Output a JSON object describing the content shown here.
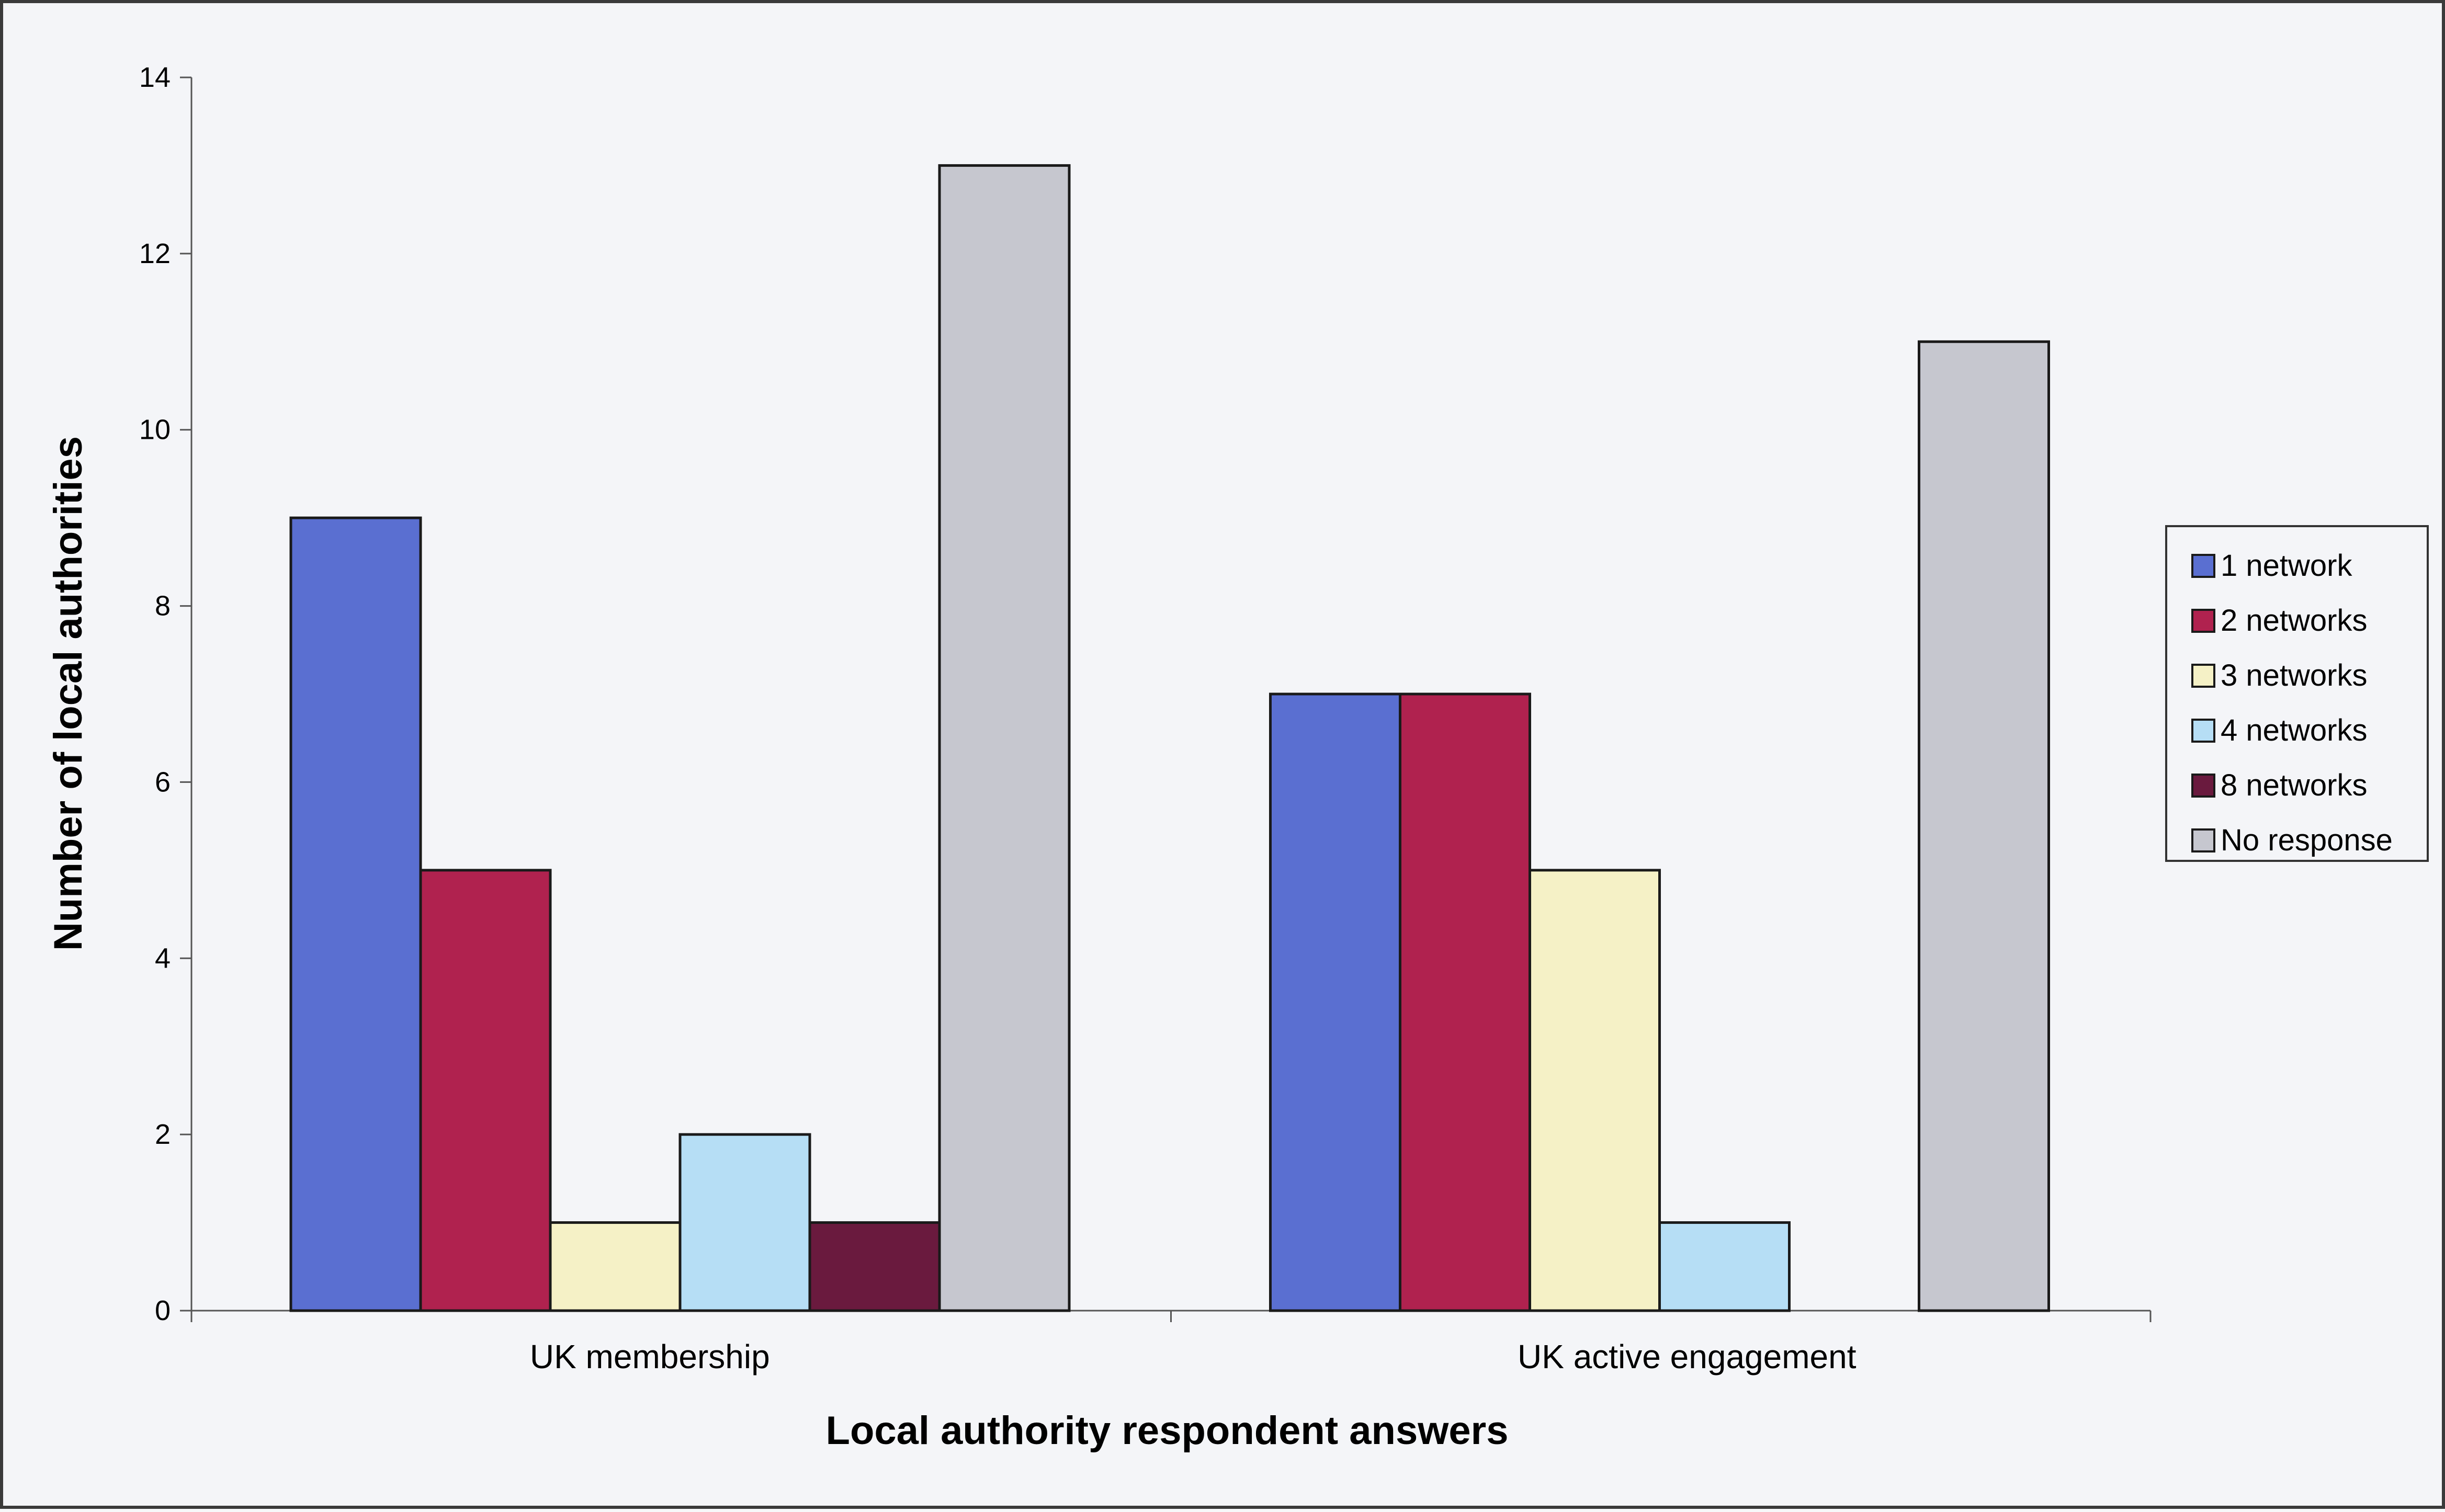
{
  "chart_data": {
    "type": "bar",
    "title": "",
    "xlabel": "Local authority respondent answers",
    "ylabel": "Number of local authorities",
    "ylim": [
      0,
      14
    ],
    "yticks": [
      0,
      2,
      4,
      6,
      8,
      10,
      12,
      14
    ],
    "grid": false,
    "legend_position": "right",
    "categories": [
      "UK membership",
      "UK active engagement"
    ],
    "series": [
      {
        "name": "1 network",
        "color": "#5a6fd1",
        "values": [
          9,
          7
        ]
      },
      {
        "name": "2 networks",
        "color": "#b0224f",
        "values": [
          5,
          7
        ]
      },
      {
        "name": "3 networks",
        "color": "#f5f1c6",
        "values": [
          1,
          5
        ]
      },
      {
        "name": "4 networks",
        "color": "#b6def5",
        "values": [
          2,
          1
        ]
      },
      {
        "name": "8 networks",
        "color": "#6a1a3e",
        "values": [
          1,
          0
        ]
      },
      {
        "name": "No response",
        "color": "#c6c7cf",
        "values": [
          13,
          11
        ]
      }
    ]
  }
}
